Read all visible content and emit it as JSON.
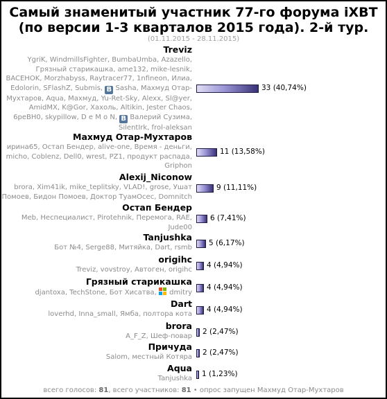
{
  "title_line1": "Самый знаменитый участник 77-го форума iXBT",
  "title_line2": "(по версии 1-3 кварталов 2015 года). 2-й тур.",
  "date_range": "(01.11.2015 - 28.11.2015)",
  "colors": {
    "bar_light": "#e0def5",
    "bar_dark": "#3a3278",
    "bar_border": "#1a1a40",
    "voter_text": "#8c8c8c",
    "vk_badge": "#54769a"
  },
  "icons": {
    "vk_badge_text": "B"
  },
  "chart_data": {
    "type": "bar",
    "orientation": "horizontal",
    "title": "Самый знаменитый участник 77-го форума iXBT (по версии 1-3 кварталов 2015 года). 2-й тур.",
    "total_votes": 81,
    "categories": [
      "Treviz",
      "Махмуд Отар-Мухтаров",
      "Alexij_Niconow",
      "Остап Бендер",
      "Tanjushka",
      "origihc",
      "Грязный старикашка",
      "Dart",
      "brora",
      "Причуда",
      "Aqua"
    ],
    "values": [
      33,
      11,
      9,
      6,
      5,
      4,
      4,
      4,
      2,
      2,
      1
    ],
    "percent_labels": [
      "33 (40,74%)",
      "11 (13,58%)",
      "9 (11,11%)",
      "6 (7,41%)",
      "5 (6,17%)",
      "4 (4,94%)",
      "4 (4,94%)",
      "4 (4,94%)",
      "2 (2,47%)",
      "2 (2,47%)",
      "1 (1,23%)"
    ],
    "rows": [
      {
        "name": "Treviz",
        "votes": 33,
        "label": "33 (40,74%)",
        "voters": [
          "YgriK, WindmillsFighter, BumbaUmba, Azazello,",
          "Грязный старикашка, ame132, mike-lesnik,",
          "BACEHOK, Morzhabyss, Raytracer77, 1nfineon, Илиа,",
          "Edolorin, SFlashZ, Submis, [VK] Sasha, Махмуд Отар-",
          "Мухтаров, Aqua, Махмуд, Yu-Ret-Sky, Alexx, Sl@yer,",
          "AmidMX, K@Gor, Хахоль, Altikin, Jester Chaos,",
          "6peBH0, skypillow, D e M o N, [VK] Валерий Сузима,",
          "SilentIrk, frol-aleksan"
        ]
      },
      {
        "name": "Махмуд Отар-Мухтаров",
        "votes": 11,
        "label": "11 (13,58%)",
        "voters": [
          "ирина65, Остап Бендер, alive-one, Время - деньги,",
          "micho, Coblenz, Dell0, wrest, PZ1, продукт распада,",
          "Griphon"
        ]
      },
      {
        "name": "Alexij_Niconow",
        "votes": 9,
        "label": "9 (11,11%)",
        "voters": [
          "brora, Xim41ik, mike_teplitsky, VLAD!, grose, Ушат",
          "Помоев, Бидон Помоев, Доктор ТуамОсес, Domnitch"
        ]
      },
      {
        "name": "Остап Бендер",
        "votes": 6,
        "label": "6 (7,41%)",
        "voters": [
          "Meb, Неспециалист, Pirotehnik, Перемога, RAE,",
          "Jude00"
        ]
      },
      {
        "name": "Tanjushka",
        "votes": 5,
        "label": "5 (6,17%)",
        "voters": [
          "Бот №4, Serge88, Митяйка, Dart, rsmb"
        ]
      },
      {
        "name": "origihc",
        "votes": 4,
        "label": "4 (4,94%)",
        "voters": [
          "Treviz, vovstroy, Автоген, origihc"
        ]
      },
      {
        "name": "Грязный старикашка",
        "votes": 4,
        "label": "4 (4,94%)",
        "voters": [
          "djantoxa, TechStone, Бот Хисатва, [MS] dmitry"
        ]
      },
      {
        "name": "Dart",
        "votes": 4,
        "label": "4 (4,94%)",
        "voters": [
          "loverhd, Inna_small, Ямба, полтора кота"
        ]
      },
      {
        "name": "brora",
        "votes": 2,
        "label": "2 (2,47%)",
        "voters": [
          "A_F_Z, Шеф-повар"
        ]
      },
      {
        "name": "Причуда",
        "votes": 2,
        "label": "2 (2,47%)",
        "voters": [
          "Salom, местный Котяра"
        ]
      },
      {
        "name": "Aqua",
        "votes": 1,
        "label": "1 (1,23%)",
        "voters": [
          "Tanjushka"
        ]
      }
    ]
  },
  "footer": {
    "votes_prefix": "всего голосов: ",
    "votes_value": "81",
    "participants_prefix": ", всего участников: ",
    "participants_value": "81",
    "poll_started": " • опрос запущен Махмуд Отар-Мухтаров"
  }
}
